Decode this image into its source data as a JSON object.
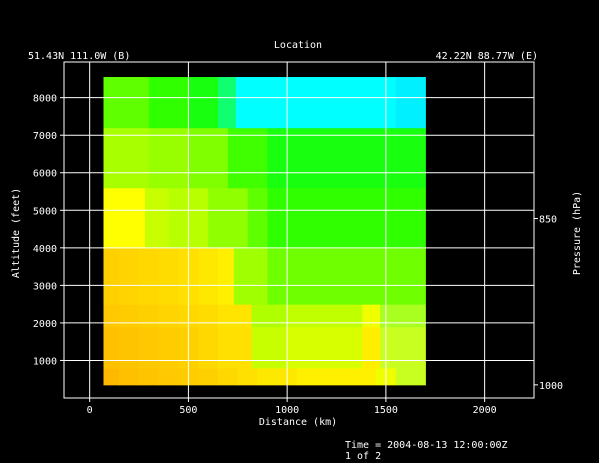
{
  "chart_data": {
    "type": "heatmap",
    "title": "Location",
    "left_location": "51.43N 111.0W (B)",
    "right_location": "42.22N 88.77W (E)",
    "xlabel": "Distance (km)",
    "ylabel": "Altitude (feet)",
    "y2label": "Pressure (hPa)",
    "xlim": [
      -130,
      2250
    ],
    "ylim": [
      0,
      8950
    ],
    "x_ticks": [
      0,
      500,
      1000,
      1500,
      2000
    ],
    "y_ticks": [
      1000,
      2000,
      3000,
      4000,
      5000,
      6000,
      7000,
      8000
    ],
    "pressure_ticks": [
      {
        "label": "850",
        "altitude_ft": 4780
      },
      {
        "label": "1000",
        "altitude_ft": 350
      }
    ],
    "grid": true,
    "cells": [
      {
        "x0": 70,
        "x1": 150,
        "y0": 350,
        "y1": 800,
        "color": "#ffb800"
      },
      {
        "x0": 150,
        "x1": 250,
        "y0": 350,
        "y1": 800,
        "color": "#ffc000"
      },
      {
        "x0": 250,
        "x1": 350,
        "y0": 350,
        "y1": 800,
        "color": "#ffc400"
      },
      {
        "x0": 350,
        "x1": 450,
        "y0": 350,
        "y1": 800,
        "color": "#ffc800"
      },
      {
        "x0": 450,
        "x1": 550,
        "y0": 350,
        "y1": 800,
        "color": "#ffcc00"
      },
      {
        "x0": 550,
        "x1": 650,
        "y0": 350,
        "y1": 800,
        "color": "#ffd000"
      },
      {
        "x0": 650,
        "x1": 750,
        "y0": 350,
        "y1": 800,
        "color": "#ffd800"
      },
      {
        "x0": 750,
        "x1": 850,
        "y0": 350,
        "y1": 800,
        "color": "#ffe000"
      },
      {
        "x0": 850,
        "x1": 1050,
        "y0": 350,
        "y1": 800,
        "color": "#ffe800"
      },
      {
        "x0": 1050,
        "x1": 1450,
        "y0": 350,
        "y1": 800,
        "color": "#fff000"
      },
      {
        "x0": 1450,
        "x1": 1550,
        "y0": 350,
        "y1": 800,
        "color": "#f0ff00"
      },
      {
        "x0": 1550,
        "x1": 1700,
        "y0": 350,
        "y1": 800,
        "color": "#c8ff20"
      },
      {
        "x0": 70,
        "x1": 150,
        "y0": 800,
        "y1": 1900,
        "color": "#ffc000"
      },
      {
        "x0": 150,
        "x1": 250,
        "y0": 800,
        "y1": 1900,
        "color": "#ffc400"
      },
      {
        "x0": 250,
        "x1": 350,
        "y0": 800,
        "y1": 1900,
        "color": "#ffc800"
      },
      {
        "x0": 350,
        "x1": 450,
        "y0": 800,
        "y1": 1900,
        "color": "#ffcc00"
      },
      {
        "x0": 450,
        "x1": 550,
        "y0": 800,
        "y1": 1900,
        "color": "#ffd000"
      },
      {
        "x0": 550,
        "x1": 650,
        "y0": 800,
        "y1": 1900,
        "color": "#ffd800"
      },
      {
        "x0": 650,
        "x1": 820,
        "y0": 800,
        "y1": 1900,
        "color": "#ffe000"
      },
      {
        "x0": 820,
        "x1": 1000,
        "y0": 800,
        "y1": 1900,
        "color": "#c8ff00"
      },
      {
        "x0": 1000,
        "x1": 1380,
        "y0": 800,
        "y1": 1900,
        "color": "#d8ff00"
      },
      {
        "x0": 1380,
        "x1": 1470,
        "y0": 800,
        "y1": 1900,
        "color": "#ffee00"
      },
      {
        "x0": 1470,
        "x1": 1700,
        "y0": 800,
        "y1": 1900,
        "color": "#c8ff20"
      },
      {
        "x0": 70,
        "x1": 150,
        "y0": 1900,
        "y1": 2500,
        "color": "#ffc800"
      },
      {
        "x0": 150,
        "x1": 250,
        "y0": 1900,
        "y1": 2500,
        "color": "#ffcc00"
      },
      {
        "x0": 250,
        "x1": 350,
        "y0": 1900,
        "y1": 2500,
        "color": "#ffd000"
      },
      {
        "x0": 350,
        "x1": 450,
        "y0": 1900,
        "y1": 2500,
        "color": "#ffd400"
      },
      {
        "x0": 450,
        "x1": 550,
        "y0": 1900,
        "y1": 2500,
        "color": "#ffd800"
      },
      {
        "x0": 550,
        "x1": 650,
        "y0": 1900,
        "y1": 2500,
        "color": "#ffdc00"
      },
      {
        "x0": 650,
        "x1": 820,
        "y0": 1900,
        "y1": 2500,
        "color": "#ffe400"
      },
      {
        "x0": 820,
        "x1": 1000,
        "y0": 1900,
        "y1": 2500,
        "color": "#b0ff00"
      },
      {
        "x0": 1000,
        "x1": 1380,
        "y0": 1900,
        "y1": 2500,
        "color": "#c0ff00"
      },
      {
        "x0": 1380,
        "x1": 1470,
        "y0": 1900,
        "y1": 2500,
        "color": "#f0ff00"
      },
      {
        "x0": 1470,
        "x1": 1700,
        "y0": 1900,
        "y1": 2500,
        "color": "#a8ff20"
      },
      {
        "x0": 70,
        "x1": 150,
        "y0": 2500,
        "y1": 4000,
        "color": "#ffd000"
      },
      {
        "x0": 150,
        "x1": 250,
        "y0": 2500,
        "y1": 4000,
        "color": "#ffd400"
      },
      {
        "x0": 250,
        "x1": 350,
        "y0": 2500,
        "y1": 4000,
        "color": "#ffd800"
      },
      {
        "x0": 350,
        "x1": 450,
        "y0": 2500,
        "y1": 4000,
        "color": "#ffdc00"
      },
      {
        "x0": 450,
        "x1": 550,
        "y0": 2500,
        "y1": 4000,
        "color": "#ffe000"
      },
      {
        "x0": 550,
        "x1": 650,
        "y0": 2500,
        "y1": 4000,
        "color": "#ffe800"
      },
      {
        "x0": 650,
        "x1": 730,
        "y0": 2500,
        "y1": 4000,
        "color": "#fff000"
      },
      {
        "x0": 730,
        "x1": 900,
        "y0": 2500,
        "y1": 4000,
        "color": "#a0ff00"
      },
      {
        "x0": 900,
        "x1": 1700,
        "y0": 2500,
        "y1": 4000,
        "color": "#70ff00"
      },
      {
        "x0": 70,
        "x1": 150,
        "y0": 4000,
        "y1": 5600,
        "color": "#ffff00"
      },
      {
        "x0": 150,
        "x1": 280,
        "y0": 4000,
        "y1": 5600,
        "color": "#ffff00"
      },
      {
        "x0": 280,
        "x1": 400,
        "y0": 4000,
        "y1": 5600,
        "color": "#c8ff00"
      },
      {
        "x0": 400,
        "x1": 600,
        "y0": 4000,
        "y1": 5600,
        "color": "#b8ff00"
      },
      {
        "x0": 600,
        "x1": 800,
        "y0": 4000,
        "y1": 5600,
        "color": "#90ff00"
      },
      {
        "x0": 800,
        "x1": 900,
        "y0": 4000,
        "y1": 5600,
        "color": "#60ff00"
      },
      {
        "x0": 900,
        "x1": 1700,
        "y0": 4000,
        "y1": 5600,
        "color": "#30ff00"
      },
      {
        "x0": 70,
        "x1": 300,
        "y0": 5600,
        "y1": 7200,
        "color": "#a8ff00"
      },
      {
        "x0": 300,
        "x1": 500,
        "y0": 5600,
        "y1": 7200,
        "color": "#98ff00"
      },
      {
        "x0": 500,
        "x1": 700,
        "y0": 5600,
        "y1": 7200,
        "color": "#80ff00"
      },
      {
        "x0": 700,
        "x1": 900,
        "y0": 5600,
        "y1": 7200,
        "color": "#40ff00"
      },
      {
        "x0": 900,
        "x1": 1700,
        "y0": 5600,
        "y1": 7200,
        "color": "#18ff10"
      },
      {
        "x0": 70,
        "x1": 300,
        "y0": 7200,
        "y1": 8550,
        "color": "#60ff00"
      },
      {
        "x0": 300,
        "x1": 500,
        "y0": 7200,
        "y1": 8550,
        "color": "#30ff00"
      },
      {
        "x0": 500,
        "x1": 650,
        "y0": 7200,
        "y1": 8550,
        "color": "#18ff10"
      },
      {
        "x0": 650,
        "x1": 740,
        "y0": 7200,
        "y1": 8550,
        "color": "#10ff70"
      },
      {
        "x0": 740,
        "x1": 1550,
        "y0": 7200,
        "y1": 8550,
        "color": "#00ffff"
      },
      {
        "x0": 1550,
        "x1": 1700,
        "y0": 7200,
        "y1": 8550,
        "color": "#00f0ff"
      }
    ]
  },
  "footer": {
    "time": "Time = 2004-08-13 12:00:00Z",
    "page": "1 of 2"
  }
}
